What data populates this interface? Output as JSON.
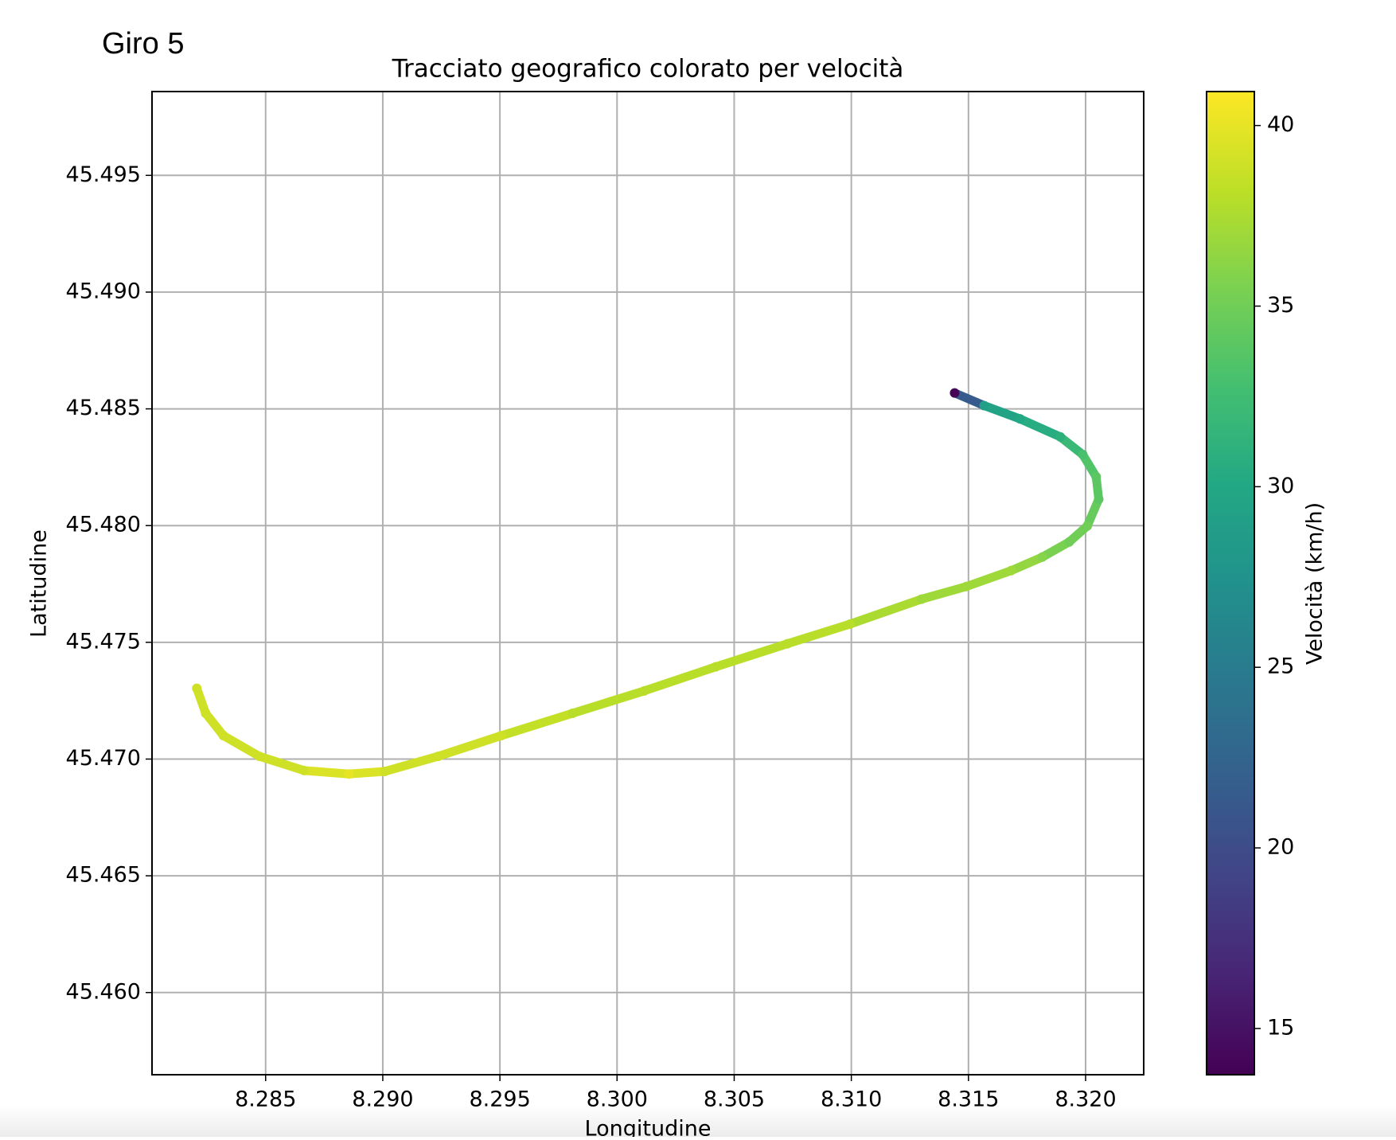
{
  "chart_data": {
    "type": "scatter",
    "heading": "Giro 5",
    "title": "Tracciato geografico colorato per velocità",
    "x_label": "Longitudine",
    "y_label": "Latitudine",
    "colorbar_label": "Velocità (km/h)",
    "colormap": "viridis",
    "grid": true,
    "x": [
      8.31441,
      8.31567,
      8.3172,
      8.31892,
      8.31988,
      8.32045,
      8.32056,
      8.32007,
      8.3193,
      8.31815,
      8.31682,
      8.31491,
      8.313,
      8.30994,
      8.30727,
      8.30421,
      8.30116,
      8.2981,
      8.29505,
      8.29237,
      8.29008,
      8.28855,
      8.28664,
      8.28473,
      8.2832,
      8.28244,
      8.28206
    ],
    "values": [
      45.48568,
      45.48514,
      45.48457,
      45.4838,
      45.48304,
      45.48209,
      45.48113,
      45.47998,
      45.4793,
      45.47865,
      45.47807,
      45.47739,
      45.47685,
      45.47578,
      45.47494,
      45.47395,
      45.47292,
      45.47196,
      45.471,
      45.47012,
      45.46947,
      45.46936,
      45.46951,
      45.47012,
      45.471,
      45.47196,
      45.47303
    ],
    "speed": [
      14,
      29,
      30,
      31,
      33,
      34,
      34,
      35,
      35,
      36,
      37,
      37,
      37,
      38,
      38,
      38,
      38,
      38,
      39,
      39,
      39,
      40,
      39,
      39,
      39,
      39,
      39
    ],
    "xlim": [
      8.28015,
      8.32248
    ],
    "ylim": [
      45.45648,
      45.49859
    ],
    "clim": [
      13.72,
      40.94
    ],
    "xticks": [
      8.285,
      {
        "value": 8.29,
        "label": "8.290"
      },
      8.295,
      {
        "value": 8.3,
        "label": "8.300"
      },
      8.305,
      {
        "value": 8.31,
        "label": "8.310"
      },
      8.315,
      {
        "value": 8.32,
        "label": "8.320"
      }
    ],
    "yticks": [
      {
        "value": 45.46,
        "label": "45.460"
      },
      45.465,
      {
        "value": 45.47,
        "label": "45.470"
      },
      45.475,
      {
        "value": 45.48,
        "label": "45.480"
      },
      45.485,
      {
        "value": 45.49,
        "label": "45.490"
      },
      45.495
    ],
    "cticks": [
      15,
      20,
      25,
      30,
      35,
      40
    ]
  }
}
